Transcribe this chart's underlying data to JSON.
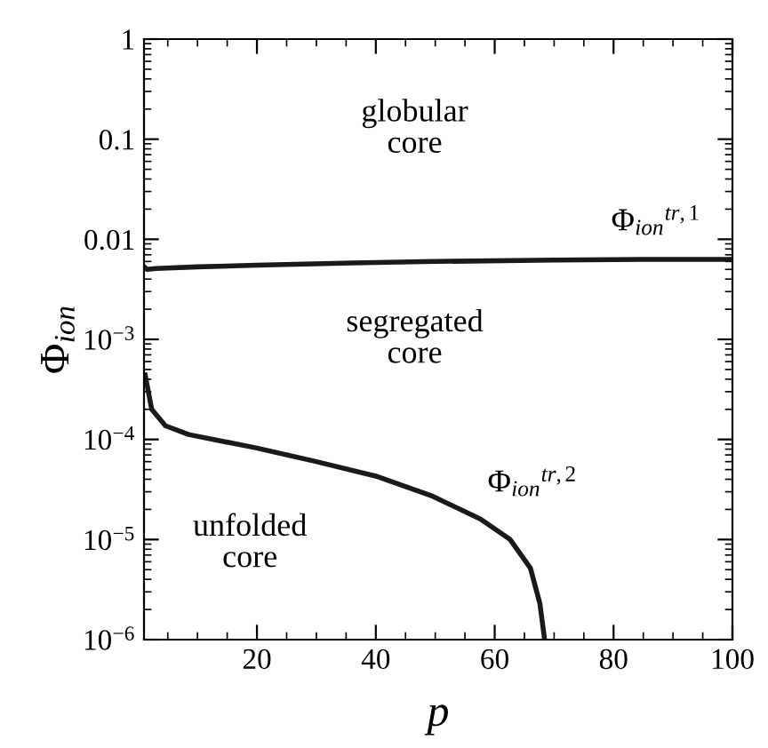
{
  "chart_data": {
    "type": "line",
    "xlabel": "p",
    "ylabel": "Φ$_{ion}$",
    "log": "y",
    "grid": false,
    "line_style": "solid",
    "marker": "none",
    "xlim": [
      1,
      100
    ],
    "xticks": [
      20,
      40,
      60,
      80,
      100
    ],
    "ylim": [
      1e-06,
      1
    ],
    "yticks": [
      1,
      0.1,
      0.01,
      {
        "value": 0.001,
        "label": "10$^{−3}$"
      },
      {
        "value": 0.0001,
        "label": "10$^{−4}$"
      },
      {
        "value": 1e-05,
        "label": "10$^{−5}$"
      },
      {
        "value": 1e-06,
        "label": "10$^{−6}$"
      }
    ],
    "series": [
      {
        "color": "#1a1a1a",
        "x": [
          1.2,
          1.5,
          3,
          10,
          20,
          36,
          50,
          70,
          85,
          100
        ],
        "values": [
          0.0052,
          0.005,
          0.0051,
          0.0053,
          0.0055,
          0.0058,
          0.006,
          0.0062,
          0.0063,
          0.0063
        ]
      },
      {
        "color": "#1a1a1a",
        "x": [
          1.2,
          2.3,
          4.6,
          8.5,
          20,
          30,
          40,
          49.6,
          57.6,
          62.6,
          66,
          67.6,
          68.4
        ],
        "values": [
          0.00044,
          0.0002,
          0.000137,
          0.000112,
          8.2e-05,
          6e-05,
          4.3e-05,
          2.7e-05,
          1.6e-05,
          1e-05,
          5.2e-06,
          2.3e-06,
          1e-06
        ]
      }
    ],
    "annotations": [
      "Φ$_{ion}$$^{tr,1}$",
      "Φ$_{ion}$$^{tr,2}$",
      "globular\ncore",
      "segregated\ncore",
      "unfolded\ncore"
    ]
  }
}
